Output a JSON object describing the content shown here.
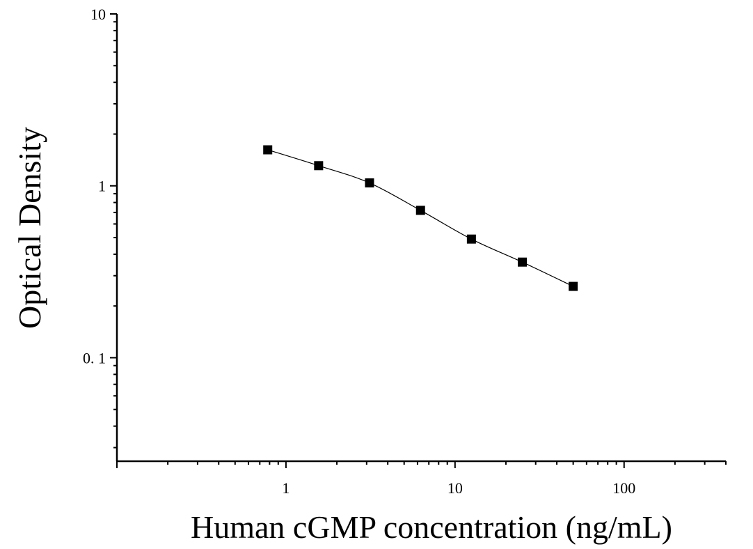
{
  "chart_data": {
    "type": "scatter",
    "xlabel": "Human cGMP concentration (ng/mL)",
    "ylabel": "Optical Density",
    "xscale": "log",
    "yscale": "log",
    "xlim": [
      0.1,
      400
    ],
    "ylim": [
      0.025,
      10
    ],
    "x_ticks": [
      1,
      10,
      100
    ],
    "x_tick_labels": [
      "1",
      "10",
      "100"
    ],
    "y_ticks": [
      0.1,
      1,
      10
    ],
    "y_tick_labels": [
      "0. 1",
      "1",
      "10"
    ],
    "grid": false,
    "legend": "none",
    "series": [
      {
        "marker": "square",
        "color": "#000000",
        "x": [
          0.78,
          1.56,
          3.12,
          6.25,
          12.5,
          25,
          50
        ],
        "y": [
          1.62,
          1.31,
          1.04,
          0.72,
          0.49,
          0.36,
          0.26
        ],
        "fit_line": true
      }
    ]
  }
}
